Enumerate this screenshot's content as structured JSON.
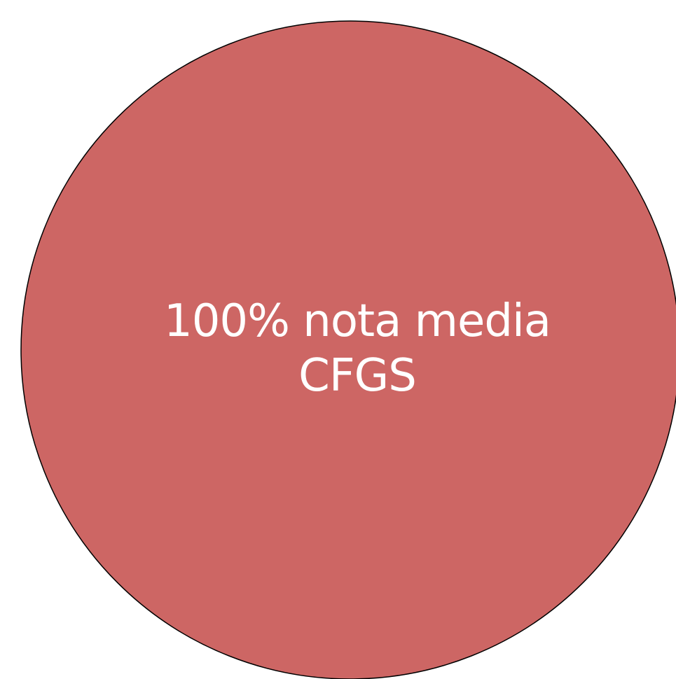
{
  "chart_data": {
    "type": "pie",
    "slices": [
      {
        "label": "100% nota media\nCFGS",
        "value": 100
      }
    ],
    "colors": {
      "slice": "#cd6664",
      "outline": "#000000"
    }
  }
}
